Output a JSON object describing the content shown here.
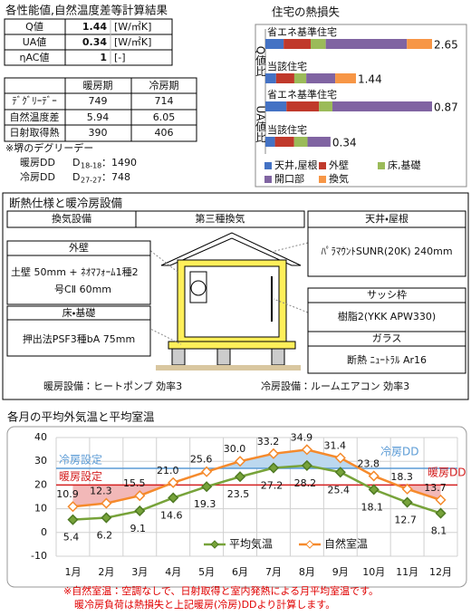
{
  "results": {
    "title": "各性能値,自然温度差等計算結果",
    "performance": [
      {
        "label": "Q値",
        "value": "1.44",
        "unit": "[W/㎡K]"
      },
      {
        "label": "UA値",
        "value": "0.34",
        "unit": "[W/㎡K]"
      },
      {
        "label": "ηAC値",
        "value": "1",
        "unit": "[-]"
      }
    ],
    "table": {
      "header": [
        "暖房期",
        "冷房期"
      ],
      "rows": [
        {
          "label": "ﾃﾞｸﾞﾘｰﾃﾞｰ",
          "values": [
            "749",
            "714"
          ]
        },
        {
          "label": "自然温度差",
          "values": [
            "5.94",
            "6.05"
          ]
        },
        {
          "label": "日射取得熱",
          "values": [
            "390",
            "406"
          ]
        }
      ]
    },
    "note": "※堺のデグリーデー",
    "degree_days": [
      {
        "label": "暖房DD",
        "symbol": "D",
        "sub": "18-18",
        "value": "：1490"
      },
      {
        "label": "冷房DD",
        "symbol": "D",
        "sub": "27-27",
        "value": "：748"
      }
    ]
  },
  "heat_loss_chart": {
    "type": "bar",
    "title": "住宅の熱損失",
    "groups": [
      "Q値比",
      "UA値比"
    ],
    "categories": [
      "省エネ基準住宅",
      "当該住宅",
      "省エネ基準住宅",
      "当該住宅"
    ],
    "totals": [
      2.65,
      1.44,
      0.87,
      0.34
    ],
    "series": [
      {
        "name": "天井,屋根",
        "color": "#4472c4",
        "values": [
          0.29,
          0.17,
          0.11,
          0.05
        ]
      },
      {
        "name": "外壁",
        "color": "#c0392b",
        "values": [
          0.43,
          0.29,
          0.17,
          0.1
        ]
      },
      {
        "name": "床,基礎",
        "color": "#9bbb59",
        "values": [
          0.24,
          0.19,
          0.07,
          0.07
        ]
      },
      {
        "name": "開口部",
        "color": "#8064a2",
        "values": [
          1.29,
          0.46,
          0.52,
          0.12
        ]
      },
      {
        "name": "換気",
        "color": "#f79646",
        "values": [
          0.4,
          0.33,
          null,
          null
        ]
      }
    ]
  },
  "spec": {
    "title": "断熱仕様と暖冷房設備",
    "ventilation": {
      "label": "換気設備",
      "value": "第三種換気"
    },
    "roof": {
      "label": "天井・屋根",
      "value": "ﾊﾟﾗﾏｳﾝﾄSUNR(20K) 240mm"
    },
    "wall": {
      "label": "外壁",
      "lines": [
        "土壁 50mm + ﾈｵﾏﾌｫｰﾑ1種2",
        "号CⅡ 60mm"
      ]
    },
    "floor": {
      "label": "床・基礎",
      "value": "押出法PSF3種bA  75mm"
    },
    "sash": {
      "label": "サッシ枠",
      "value": "樹脂2(YKK APW330)"
    },
    "glass": {
      "label": "ガラス",
      "value": "断熱 ﾆｭｰﾄﾗﾙ Ar16"
    },
    "heating": "暖房設備：ヒートポンプ  効率3",
    "cooling": "冷房設備：ルームエアコン  効率3"
  },
  "monthly_chart": {
    "type": "line",
    "title": "各月の平均外気温と平均室温",
    "categories": [
      "1月",
      "2月",
      "3月",
      "4月",
      "5月",
      "6月",
      "7月",
      "8月",
      "9月",
      "10月",
      "11月",
      "12月"
    ],
    "ylim": [
      -10,
      40
    ],
    "yticks": [
      -10,
      0,
      10,
      20,
      30,
      40
    ],
    "series": [
      {
        "name": "平均気温",
        "color": "#77a33a",
        "values": [
          5.4,
          6.2,
          9.1,
          14.6,
          19.3,
          23.5,
          27.2,
          28.2,
          25.4,
          18.1,
          12.7,
          8.1
        ]
      },
      {
        "name": "自然室温",
        "color": "#f58a2c",
        "values": [
          10.9,
          12.3,
          15.5,
          21.0,
          25.6,
          30.0,
          33.2,
          34.9,
          31.4,
          23.8,
          18.3,
          13.7
        ],
        "value_labels": [
          "10.9",
          "12.3",
          "15.5",
          "21.0",
          "25.6",
          "30.0",
          "33.2",
          "34.9",
          "31.4",
          "23.8",
          "18.3",
          "13.7"
        ]
      }
    ],
    "setpoints": [
      {
        "name": "冷房設定",
        "value": 27,
        "color": "#5b9bd5",
        "area": "冷房DD",
        "area_color": "#bcd8ef"
      },
      {
        "name": "暖房設定",
        "value": 20,
        "color": "#d42020",
        "area": "暖房DD",
        "area_color": "#f2b8b8"
      }
    ],
    "footnotes": [
      "※自然室温：空調なしで、日射取得と室内発熱による月平均室温です。",
      "暖冷房負荷は熱損失と上記暖房(冷房)DDより計算します。"
    ]
  }
}
